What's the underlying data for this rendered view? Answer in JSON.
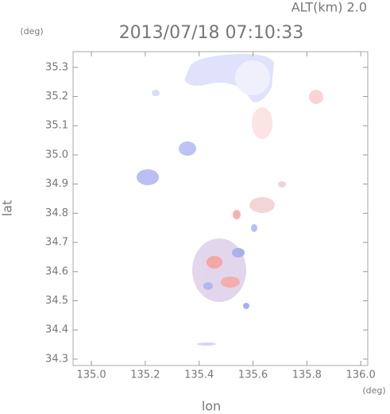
{
  "chart_data": {
    "type": "map",
    "title": "2013/07/18 07:10:33",
    "altitude_label": "ALT(km) 2.0",
    "y_unit": "(deg)",
    "x_unit": "(deg)",
    "x_label": "lon",
    "y_label": "lat",
    "xlim": [
      134.932,
      136.026
    ],
    "ylim": [
      34.278,
      35.354
    ],
    "xticks": [
      {
        "value": 135.0,
        "label": "135.0"
      },
      135.2,
      135.4,
      135.6,
      135.8,
      {
        "value": 136.0,
        "label": "136.0"
      }
    ],
    "yticks": [
      34.3,
      34.4,
      34.5,
      34.6,
      34.7,
      34.8,
      34.9,
      {
        "value": 35.0,
        "label": "35.0"
      },
      35.1,
      35.2,
      35.3
    ]
  }
}
